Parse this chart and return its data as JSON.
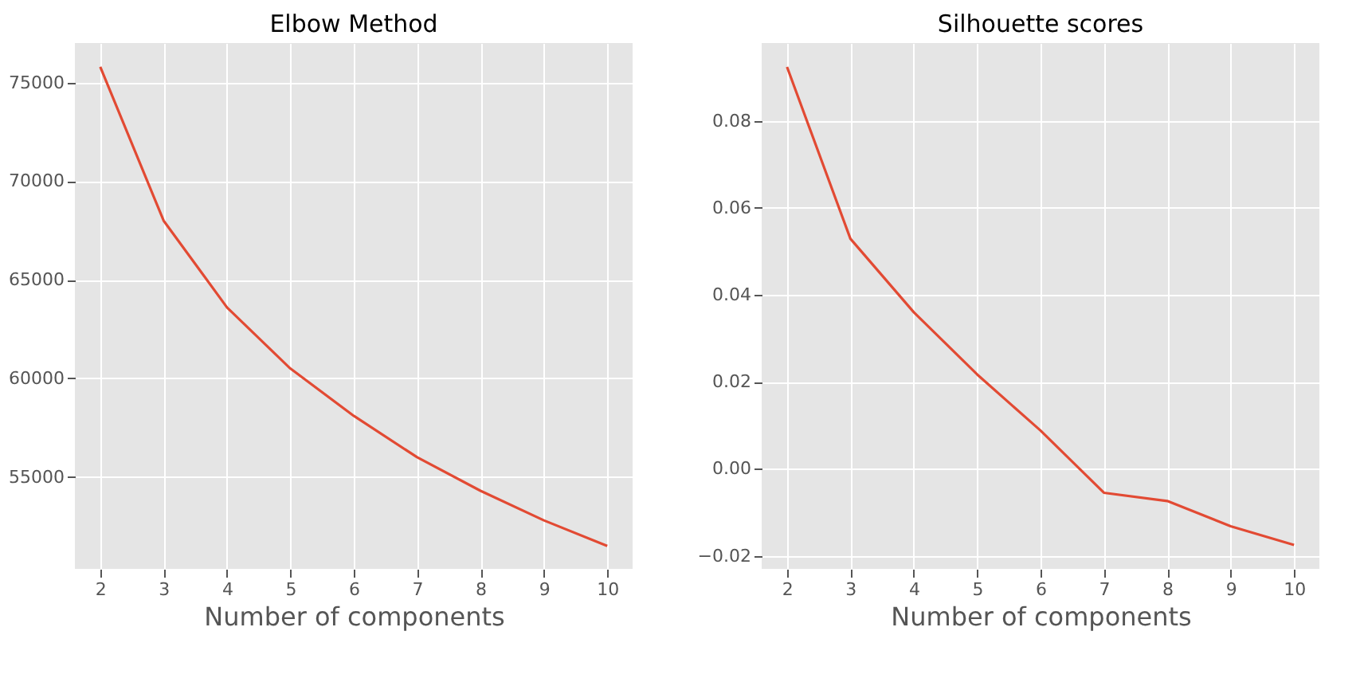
{
  "chart_data": [
    {
      "type": "line",
      "title": "Elbow Method",
      "xlabel": "Number of components",
      "x": [
        2,
        3,
        4,
        5,
        6,
        7,
        8,
        9,
        10
      ],
      "series": [
        {
          "color": "#e24a33",
          "values": [
            75800,
            68000,
            63600,
            60500,
            58100,
            56000,
            54300,
            52800,
            51500
          ]
        }
      ],
      "xlim": [
        1.6,
        10.4
      ],
      "ylim": [
        50340,
        77010
      ],
      "xticks": [
        2,
        3,
        4,
        5,
        6,
        7,
        8,
        9,
        10
      ],
      "yticks": [
        55000,
        60000,
        65000,
        70000,
        75000
      ],
      "grid": true,
      "line_style": "solid"
    },
    {
      "type": "line",
      "title": "Silhouette scores",
      "xlabel": "Number of components",
      "x": [
        2,
        3,
        4,
        5,
        6,
        7,
        8,
        9,
        10
      ],
      "series": [
        {
          "color": "#e24a33",
          "values": [
            0.0924,
            0.0529,
            0.036,
            0.0217,
            0.0088,
            -0.0055,
            -0.0074,
            -0.0132,
            -0.0175
          ]
        }
      ],
      "xlim": [
        1.6,
        10.4
      ],
      "ylim": [
        -0.023,
        0.0979
      ],
      "xticks": [
        2,
        3,
        4,
        5,
        6,
        7,
        8,
        9,
        10
      ],
      "yticks": [
        {
          "value": -0.02,
          "label": "−0.02"
        },
        {
          "value": 0,
          "label": "0.00"
        },
        {
          "value": 0.02,
          "label": "0.02"
        },
        {
          "value": 0.04,
          "label": "0.04"
        },
        {
          "value": 0.06,
          "label": "0.06"
        },
        {
          "value": 0.08,
          "label": "0.08"
        }
      ],
      "grid": true,
      "line_style": "solid"
    }
  ]
}
